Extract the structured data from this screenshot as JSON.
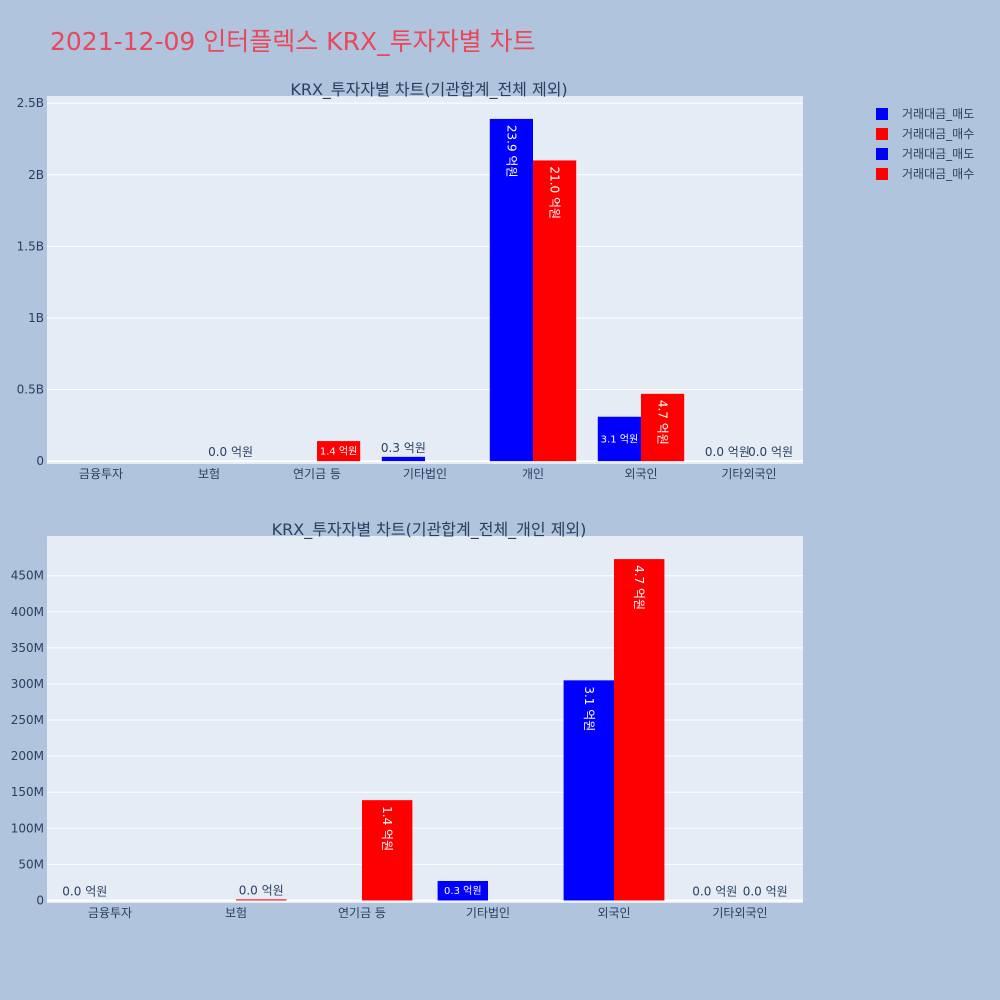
{
  "page": {
    "title": "2021-12-09 인터플렉스 KRX_투자자별 차트"
  },
  "legend": [
    {
      "name": "거래대금_매도",
      "color": "#0000ff"
    },
    {
      "name": "거래대금_매수",
      "color": "#ff0000"
    },
    {
      "name": "거래대금_매도",
      "color": "#0000ff"
    },
    {
      "name": "거래대금_매수",
      "color": "#ff0000"
    }
  ],
  "chart_data": [
    {
      "type": "bar",
      "title": "KRX_투자자별 차트(기관합계_전체 제외)",
      "categories": [
        "금융투자",
        "보험",
        "연기금 등",
        "기타법인",
        "개인",
        "외국인",
        "기타외국인"
      ],
      "ylim": [
        -20000000,
        2550000000
      ],
      "ytick_values": [
        0,
        500000000,
        1000000000,
        1500000000,
        2000000000,
        2500000000
      ],
      "ytick_labels": [
        "0",
        "0.5B",
        "1B",
        "1.5B",
        "2B",
        "2.5B"
      ],
      "grid": true,
      "series": [
        {
          "name": "거래대금_매도",
          "color": "#0000ff",
          "values": [
            0,
            0,
            0,
            30000000,
            2390000000,
            310000000,
            0
          ],
          "labels": [
            "",
            "",
            "",
            "0.3 억원",
            "23.9 억원",
            "3.1 억원",
            "0.0 억원"
          ]
        },
        {
          "name": "거래대금_매수",
          "color": "#ff0000",
          "values": [
            0,
            0,
            140000000,
            0,
            2100000000,
            470000000,
            0
          ],
          "labels": [
            "",
            "0.0 억원",
            "1.4 억원",
            "",
            "21.0 억원",
            "4.7 억원",
            "0.0 억원"
          ]
        }
      ]
    },
    {
      "type": "bar",
      "title": "KRX_투자자별 차트(기관합계_전체_개인 제외)",
      "categories": [
        "금융투자",
        "보험",
        "연기금 등",
        "기타법인",
        "외국인",
        "기타외국인"
      ],
      "ylim": [
        -3500000,
        505000000
      ],
      "ytick_values": [
        0,
        50000000,
        100000000,
        150000000,
        200000000,
        250000000,
        300000000,
        350000000,
        400000000,
        450000000
      ],
      "ytick_labels": [
        "0",
        "50M",
        "100M",
        "150M",
        "200M",
        "250M",
        "300M",
        "350M",
        "400M",
        "450M"
      ],
      "grid": true,
      "series": [
        {
          "name": "거래대금_매도",
          "color": "#0000ff",
          "values": [
            0,
            0,
            0,
            27000000,
            305000000,
            0
          ],
          "labels": [
            "0.0 억원",
            "",
            "",
            "0.3 억원",
            "3.1 억원",
            "0.0 억원"
          ]
        },
        {
          "name": "거래대금_매수",
          "color": "#ff0000",
          "values": [
            0,
            1500000,
            139000000,
            0,
            473000000,
            0
          ],
          "labels": [
            "",
            "0.0 억원",
            "1.4 억원",
            "",
            "4.7 억원",
            "0.0 억원"
          ]
        }
      ]
    }
  ]
}
